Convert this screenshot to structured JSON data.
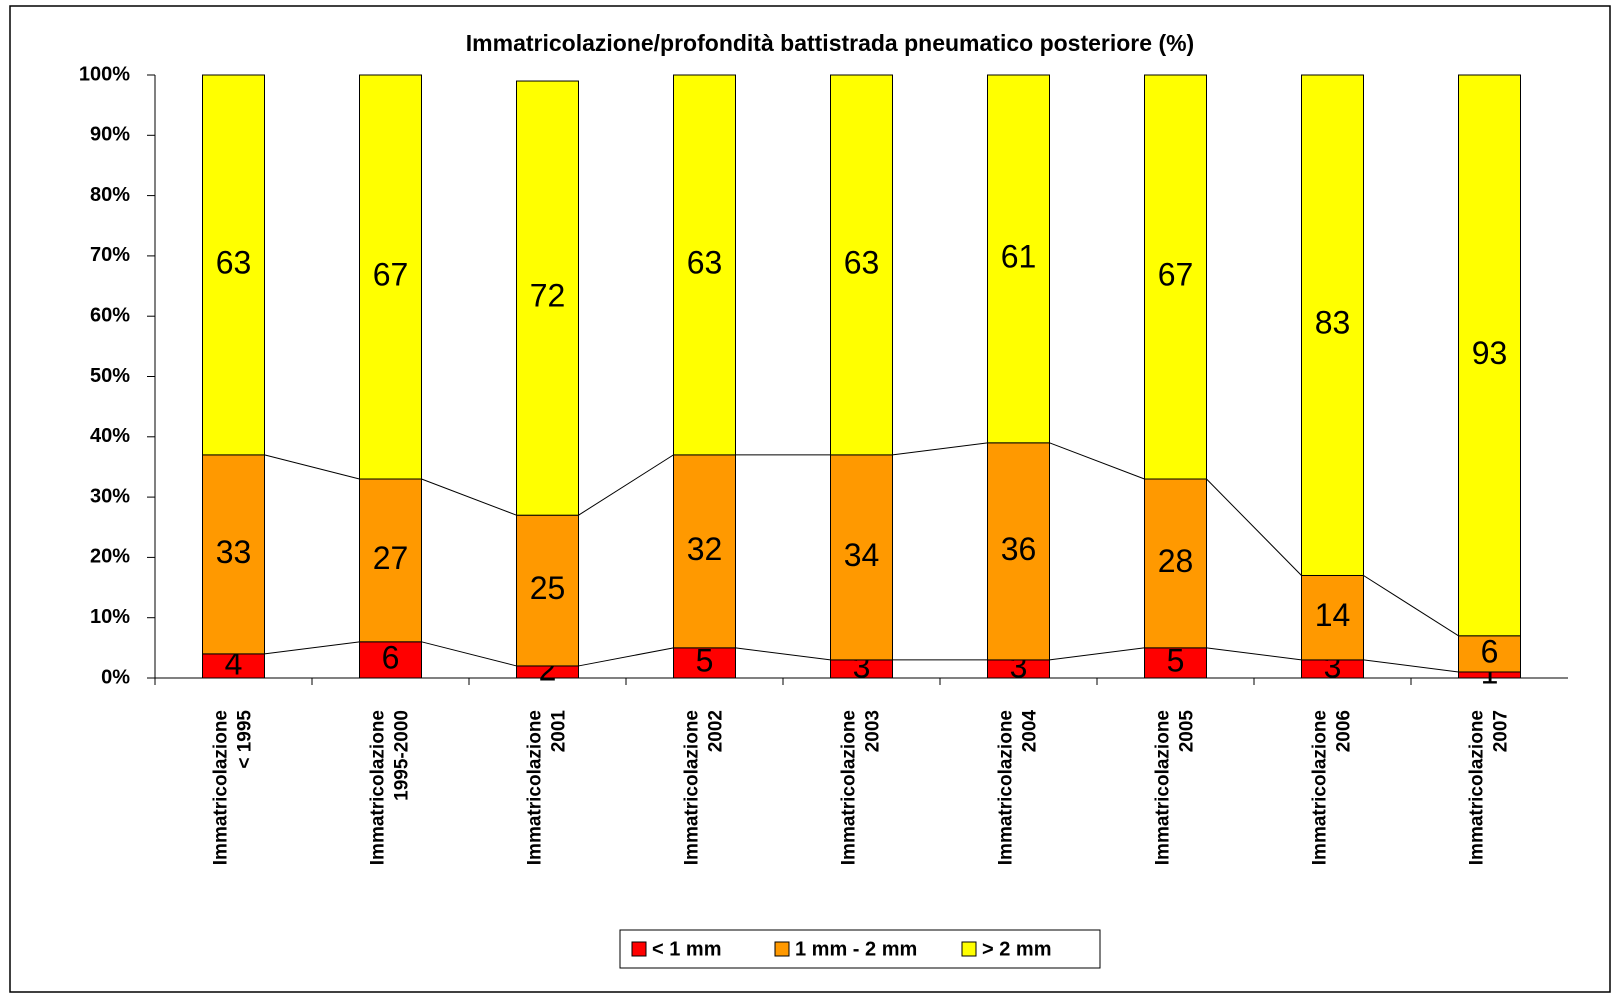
{
  "chart_data": {
    "type": "stacked_bar",
    "title": "Immatricolazione/profondità battistrada pneumatico posteriore (%)",
    "categories": [
      [
        "Immatricolazione",
        "< 1995"
      ],
      [
        "Immatricolazione",
        "1995-2000"
      ],
      [
        "Immatricolazione",
        "2001"
      ],
      [
        "Immatricolazione",
        "2002"
      ],
      [
        "Immatricolazione",
        "2003"
      ],
      [
        "Immatricolazione",
        "2004"
      ],
      [
        "Immatricolazione",
        "2005"
      ],
      [
        "Immatricolazione",
        "2006"
      ],
      [
        "Immatricolazione",
        "2007"
      ]
    ],
    "series": [
      {
        "name": "< 1 mm",
        "color": "#ff0000",
        "values": [
          4,
          6,
          2,
          5,
          3,
          3,
          5,
          3,
          1
        ]
      },
      {
        "name": "1 mm - 2 mm",
        "color": "#ff9900",
        "values": [
          33,
          27,
          25,
          32,
          34,
          36,
          28,
          14,
          6
        ]
      },
      {
        "name": "> 2 mm",
        "color": "#ffff00",
        "values": [
          63,
          67,
          72,
          63,
          63,
          61,
          67,
          83,
          93
        ]
      }
    ],
    "ylim": [
      0,
      100
    ],
    "yticks": [
      {
        "value": 0,
        "label": "0%"
      },
      {
        "value": 10,
        "label": "10%"
      },
      {
        "value": 20,
        "label": "20%"
      },
      {
        "value": 30,
        "label": "30%"
      },
      {
        "value": 40,
        "label": "40%"
      },
      {
        "value": 50,
        "label": "50%"
      },
      {
        "value": 60,
        "label": "60%"
      },
      {
        "value": 70,
        "label": "70%"
      },
      {
        "value": 80,
        "label": "80%"
      },
      {
        "value": 90,
        "label": "90%"
      },
      {
        "value": 100,
        "label": "100%"
      }
    ],
    "legend": "bottom"
  }
}
